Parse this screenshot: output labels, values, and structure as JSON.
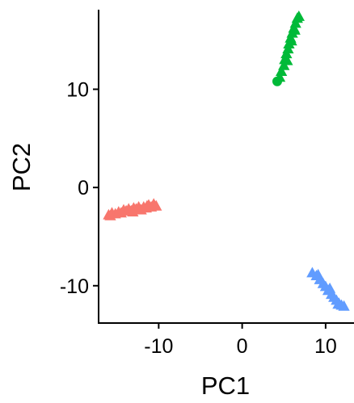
{
  "chart_data": {
    "type": "scatter",
    "xlabel": "PC1",
    "ylabel": "PC2",
    "xlim": [
      -17.2,
      13.4
    ],
    "ylim": [
      -13.8,
      18.1
    ],
    "x_ticks": [
      -10,
      0,
      10
    ],
    "y_ticks": [
      -10,
      0,
      10
    ],
    "x_tick_labels": [
      "-10",
      "0",
      "10"
    ],
    "y_tick_labels": [
      "-10",
      "0",
      "10"
    ],
    "grid": false,
    "legend": "none",
    "series": [
      {
        "color": "#F8766D",
        "marker": "triangle",
        "points": [
          [
            -16.0,
            -2.8
          ],
          [
            -15.6,
            -2.6
          ],
          [
            -15.2,
            -2.7
          ],
          [
            -14.8,
            -2.5
          ],
          [
            -14.5,
            -2.6
          ],
          [
            -14.2,
            -2.3
          ],
          [
            -13.9,
            -2.4
          ],
          [
            -13.6,
            -2.2
          ],
          [
            -13.3,
            -2.4
          ],
          [
            -13.0,
            -2.1
          ],
          [
            -12.7,
            -2.2
          ],
          [
            -12.4,
            -2.0
          ],
          [
            -12.1,
            -2.3
          ],
          [
            -11.8,
            -2.0
          ],
          [
            -11.5,
            -2.1
          ],
          [
            -11.2,
            -1.8
          ],
          [
            -10.9,
            -2.0
          ],
          [
            -10.6,
            -1.7
          ],
          [
            -10.3,
            -1.9
          ],
          [
            -15.8,
            -2.9
          ],
          [
            -13.1,
            -2.5
          ],
          [
            -11.4,
            -1.9
          ]
        ]
      },
      {
        "color": "#00BA38",
        "marker": "triangle",
        "points": [
          [
            4.5,
            11.2
          ],
          [
            4.7,
            11.8
          ],
          [
            5.0,
            12.4
          ],
          [
            5.1,
            13.0
          ],
          [
            5.3,
            13.6
          ],
          [
            5.5,
            14.1
          ],
          [
            5.6,
            14.6
          ],
          [
            5.8,
            15.2
          ],
          [
            6.0,
            15.7
          ],
          [
            6.2,
            16.2
          ],
          [
            6.4,
            16.7
          ],
          [
            6.6,
            17.2
          ],
          [
            6.8,
            17.4
          ],
          [
            5.4,
            12.9
          ],
          [
            5.9,
            14.9
          ],
          [
            6.3,
            16.0
          ]
        ]
      },
      {
        "color": "#00BA38",
        "marker": "circle",
        "points": [
          [
            4.2,
            10.8
          ]
        ]
      },
      {
        "color": "#619CFF",
        "marker": "triangle",
        "points": [
          [
            8.4,
            -8.7
          ],
          [
            8.9,
            -9.0
          ],
          [
            9.3,
            -9.4
          ],
          [
            9.7,
            -9.8
          ],
          [
            10.0,
            -10.1
          ],
          [
            10.3,
            -10.5
          ],
          [
            10.7,
            -10.9
          ],
          [
            11.0,
            -11.2
          ],
          [
            11.3,
            -11.5
          ],
          [
            11.6,
            -11.8
          ],
          [
            11.9,
            -12.0
          ],
          [
            12.2,
            -12.1
          ],
          [
            9.1,
            -8.9
          ],
          [
            10.5,
            -10.3
          ],
          [
            11.5,
            -11.9
          ]
        ]
      }
    ]
  }
}
